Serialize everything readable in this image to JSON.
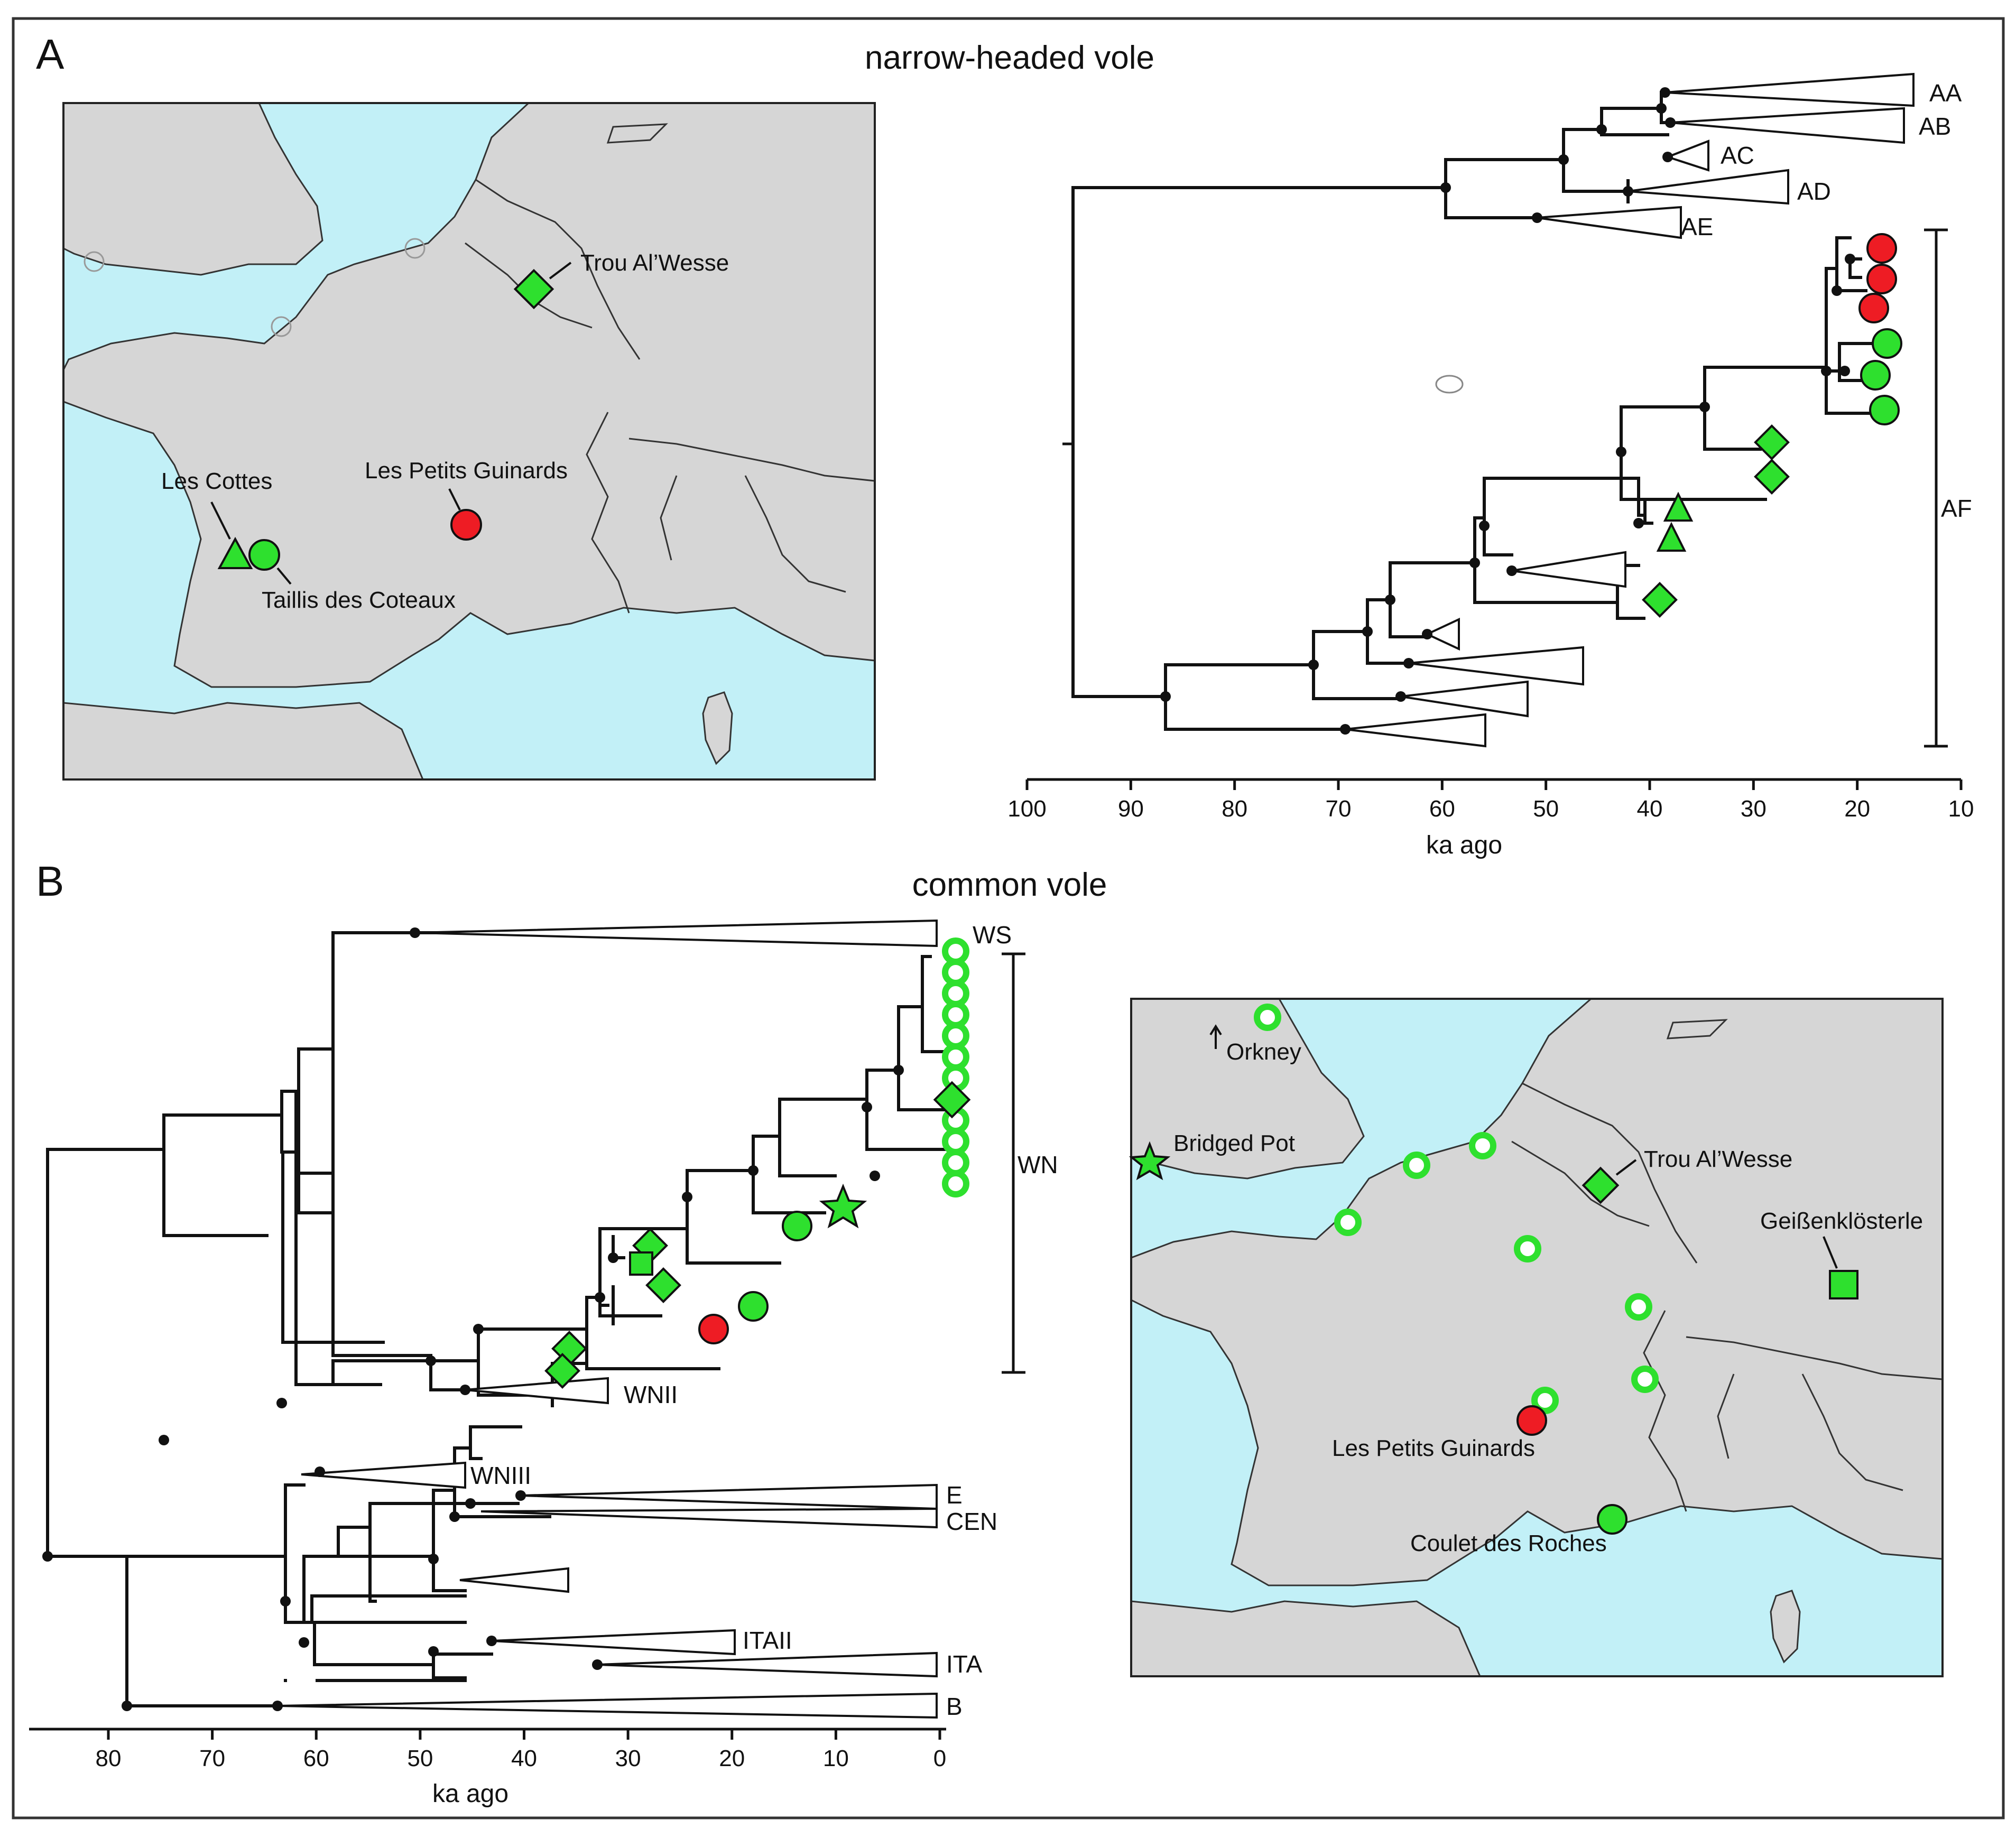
{
  "panel_a": {
    "letter": "A",
    "title": "narrow-headed vole",
    "map_labels": {
      "trou_al_wesse": "Trou Al’Wesse",
      "les_cottes": "Les Cottes",
      "les_petits_guinards": "Les Petits Guinards",
      "taillis_des_coteaux": "Taillis des Coteaux"
    },
    "clades": [
      "AA",
      "AB",
      "AC",
      "AD",
      "AE",
      "AF"
    ],
    "axis": {
      "ticks": [
        "100",
        "90",
        "80",
        "70",
        "60",
        "50",
        "40",
        "30",
        "20",
        "10"
      ],
      "title": "ka ago"
    }
  },
  "panel_b": {
    "letter": "B",
    "title": "common vole",
    "map_labels": {
      "orkney": "Orkney",
      "bridged_pot": "Bridged Pot",
      "trou_al_wesse": "Trou Al’Wesse",
      "geissenklosterle": "Geißenklösterle",
      "les_petits_guinards": "Les Petits Guinards",
      "coulet_des_roches": "Coulet des Roches"
    },
    "clades": [
      "WS",
      "WN",
      "WNII",
      "WNIII",
      "E",
      "CEN",
      "ITAII",
      "ITA",
      "B"
    ],
    "axis": {
      "ticks": [
        "80",
        "70",
        "60",
        "50",
        "40",
        "30",
        "20",
        "10",
        "0"
      ],
      "title": "ka ago"
    }
  },
  "legend_symbols": {
    "green": "#2ee02e",
    "red": "#ee1c24",
    "sea": "#c2f0f7",
    "land": "#d6d6d6"
  }
}
